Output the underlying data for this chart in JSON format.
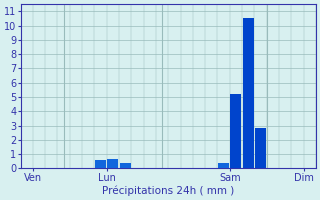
{
  "title": "",
  "xlabel": "Précipitations 24h ( mm )",
  "background_color": "#d8f0f0",
  "bar_color_dark": "#0044cc",
  "bar_color_light": "#1166dd",
  "grid_color": "#99bbbb",
  "tick_color": "#3333aa",
  "label_color": "#3333aa",
  "ylim": [
    0,
    11.5
  ],
  "yticks": [
    0,
    1,
    2,
    3,
    4,
    5,
    6,
    7,
    8,
    9,
    10,
    11
  ],
  "num_bars": 24,
  "bar_heights": [
    0,
    0,
    0,
    0,
    0,
    0,
    0.6,
    0.65,
    0.4,
    0,
    0,
    0,
    0,
    0,
    0,
    0,
    0.35,
    5.2,
    10.5,
    2.8,
    0,
    0,
    0,
    0
  ],
  "x_tick_positions": [
    0.5,
    6.5,
    16.5,
    22.5
  ],
  "x_tick_labels": [
    "Ven",
    "Lun",
    "Sam",
    "Dim"
  ],
  "vline_positions": [
    3.0,
    11.0,
    19.5
  ],
  "xlim": [
    -0.5,
    23.5
  ]
}
